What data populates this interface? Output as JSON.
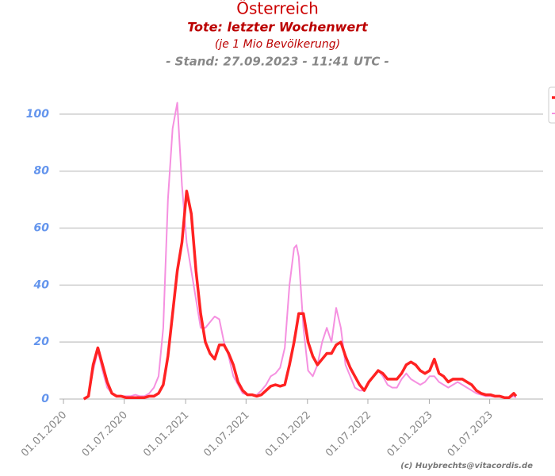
{
  "chart_data": {
    "type": "line",
    "title": "Österreich",
    "subtitle": "Tote: letzter Wochenwert",
    "subtitle2": "(je 1 Mio Bevölkerung)",
    "stand": "- Stand: 27.09.2023 - 11:41 UTC -",
    "credit": "(c) Huybrechts@vitacordis.de",
    "x": [
      "2020-03-02",
      "2020-03-16",
      "2020-03-30",
      "2020-04-13",
      "2020-04-27",
      "2020-05-11",
      "2020-05-25",
      "2020-06-08",
      "2020-06-22",
      "2020-07-06",
      "2020-07-20",
      "2020-08-03",
      "2020-08-17",
      "2020-08-31",
      "2020-09-14",
      "2020-09-28",
      "2020-10-12",
      "2020-10-26",
      "2020-11-09",
      "2020-11-23",
      "2020-12-07",
      "2020-12-21",
      "2021-01-04",
      "2021-01-18",
      "2021-02-01",
      "2021-02-15",
      "2021-03-01",
      "2021-03-15",
      "2021-03-29",
      "2021-04-12",
      "2021-04-26",
      "2021-05-10",
      "2021-05-24",
      "2021-06-07",
      "2021-06-21",
      "2021-07-05",
      "2021-07-19",
      "2021-08-02",
      "2021-08-16",
      "2021-08-30",
      "2021-09-13",
      "2021-09-27",
      "2021-10-11",
      "2021-10-25",
      "2021-11-08",
      "2021-11-22",
      "2021-11-29",
      "2021-12-06",
      "2021-12-20",
      "2022-01-03",
      "2022-01-17",
      "2022-01-31",
      "2022-02-14",
      "2022-02-28",
      "2022-03-14",
      "2022-03-28",
      "2022-04-11",
      "2022-04-25",
      "2022-05-09",
      "2022-05-23",
      "2022-06-06",
      "2022-06-20",
      "2022-07-04",
      "2022-07-18",
      "2022-08-01",
      "2022-08-15",
      "2022-08-29",
      "2022-09-12",
      "2022-09-26",
      "2022-10-10",
      "2022-10-24",
      "2022-11-07",
      "2022-11-21",
      "2022-12-05",
      "2022-12-19",
      "2023-01-02",
      "2023-01-16",
      "2023-01-30",
      "2023-02-13",
      "2023-02-27",
      "2023-03-13",
      "2023-03-27",
      "2023-04-10",
      "2023-04-24",
      "2023-05-08",
      "2023-05-22",
      "2023-06-05",
      "2023-06-19",
      "2023-07-03",
      "2023-07-17",
      "2023-07-31",
      "2023-08-14",
      "2023-08-28",
      "2023-09-11",
      "2023-09-18"
    ],
    "series": [
      {
        "color": "#f590e0",
        "width": 2,
        "values": [
          0,
          1,
          10,
          17,
          10,
          4,
          2,
          1,
          1,
          1,
          1,
          1.5,
          1,
          1,
          2,
          4,
          8,
          25,
          70,
          95,
          104,
          75,
          55,
          45,
          35,
          25,
          25,
          27,
          29,
          28,
          20,
          15,
          8,
          5,
          2,
          1.5,
          1.5,
          1.5,
          3,
          5,
          8,
          9,
          11,
          18,
          40,
          53,
          54,
          50,
          25,
          10,
          8,
          12,
          20,
          25,
          20,
          32,
          25,
          12,
          8,
          4,
          3,
          3,
          6,
          8,
          10,
          8,
          5,
          4,
          4,
          7,
          9,
          7,
          6,
          5,
          6,
          8,
          8,
          6,
          5,
          4,
          5,
          6,
          5,
          4,
          3,
          2,
          1.5,
          1,
          1,
          0.8,
          0.8,
          0.5,
          0.5,
          1,
          0.5
        ]
      },
      {
        "color": "#ff2222",
        "width": 3.5,
        "values": [
          0,
          1,
          12,
          18,
          12,
          6,
          2,
          1,
          1,
          0.5,
          0.5,
          0.5,
          0.5,
          0.5,
          1,
          1,
          2,
          5,
          15,
          30,
          45,
          55,
          73,
          65,
          45,
          30,
          20,
          16,
          14,
          19,
          19,
          16,
          12,
          6,
          3,
          1.5,
          1.5,
          1,
          1.5,
          3,
          4.5,
          5,
          4.5,
          5,
          12,
          20,
          25,
          30,
          30,
          20,
          15,
          12,
          14,
          16,
          16,
          19,
          20,
          15,
          11,
          8,
          5,
          3,
          6,
          8,
          10,
          9,
          7,
          7,
          7,
          9,
          12,
          13,
          12,
          10,
          9,
          10,
          14,
          9,
          8,
          6,
          7,
          7,
          7,
          6,
          5,
          3,
          2,
          1.5,
          1.5,
          1,
          1,
          0.5,
          0.5,
          2,
          1
        ]
      }
    ],
    "xlim": [
      "2019-12-20",
      "2023-12-08"
    ],
    "xticks": [
      {
        "value": "2020-01-01",
        "label": "01.01.2020"
      },
      {
        "value": "2020-07-01",
        "label": "01.07.2020"
      },
      {
        "value": "2021-01-01",
        "label": "01.01.2021"
      },
      {
        "value": "2021-07-01",
        "label": "01.07.2021"
      },
      {
        "value": "2022-01-01",
        "label": "01.01.2022"
      },
      {
        "value": "2022-07-01",
        "label": "01.07.2022"
      },
      {
        "value": "2023-01-01",
        "label": "01.01.2023"
      },
      {
        "value": "2023-07-01",
        "label": "01.07.2023"
      }
    ],
    "ylim": [
      0,
      110
    ],
    "yticks": [
      0,
      20,
      40,
      60,
      80,
      100
    ],
    "grid": true,
    "legend": "right"
  }
}
